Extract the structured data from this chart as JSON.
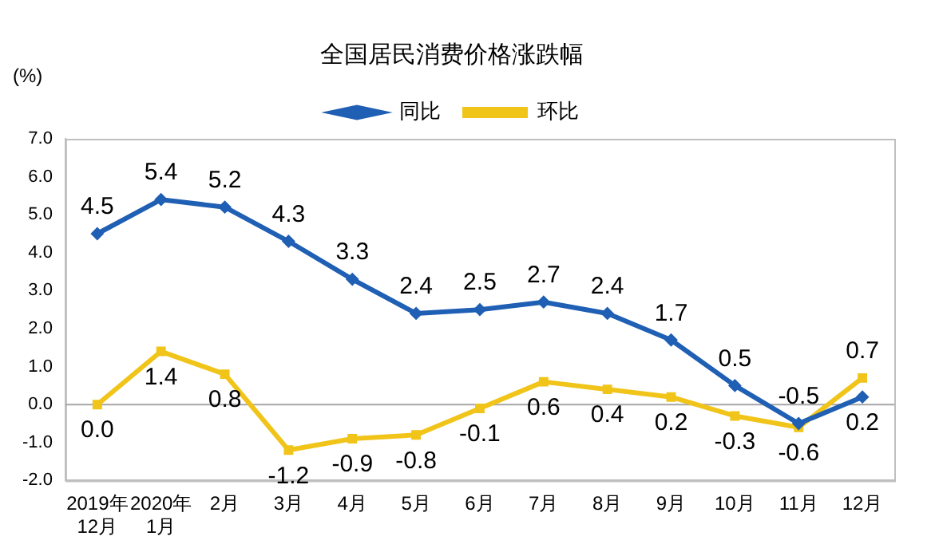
{
  "chart_data": {
    "type": "line",
    "title": "全国居民消费价格涨跌幅",
    "ylabel": "(%)",
    "categories": [
      "2019年\n12月",
      "2020年\n1月",
      "2月",
      "3月",
      "4月",
      "5月",
      "6月",
      "7月",
      "8月",
      "9月",
      "10月",
      "11月",
      "12月"
    ],
    "series": [
      {
        "name": "同比",
        "color": "#1f5fb4",
        "marker": "diamond",
        "values": [
          4.5,
          5.4,
          5.2,
          4.3,
          3.3,
          2.4,
          2.5,
          2.7,
          2.4,
          1.7,
          0.5,
          -0.5,
          0.2
        ],
        "value_labels": [
          "4.5",
          "5.4",
          "5.2",
          "4.3",
          "3.3",
          "2.4",
          "2.5",
          "2.7",
          "2.4",
          "1.7",
          "0.5",
          "-0.5",
          "0.2"
        ]
      },
      {
        "name": "环比",
        "color": "#f0c419",
        "marker": "square",
        "values": [
          0.0,
          1.4,
          0.8,
          -1.2,
          -0.9,
          -0.8,
          -0.1,
          0.6,
          0.4,
          0.2,
          -0.3,
          -0.6,
          0.7
        ],
        "value_labels": [
          "0.0",
          "1.4",
          "0.8",
          "-1.2",
          "-0.9",
          "-0.8",
          "-0.1",
          "0.6",
          "0.4",
          "0.2",
          "-0.3",
          "-0.6",
          "0.7"
        ]
      }
    ],
    "ylim": [
      -2,
      7
    ],
    "yticks": [
      {
        "value": -2,
        "label": "-2.0"
      },
      {
        "value": -1,
        "label": "-1.0"
      },
      {
        "value": 0,
        "label": "0.0"
      },
      {
        "value": 1,
        "label": "1.0"
      },
      {
        "value": 2,
        "label": "2.0"
      },
      {
        "value": 3,
        "label": "3.0"
      },
      {
        "value": 4,
        "label": "4.0"
      },
      {
        "value": 5,
        "label": "5.0"
      },
      {
        "value": 6,
        "label": "6.0"
      },
      {
        "value": 7,
        "label": "7.0"
      }
    ],
    "ref_lines": [
      {
        "axis": "y",
        "value": 0,
        "color": "#a6a6a6"
      }
    ],
    "grid": false,
    "legend": "top",
    "line_style": "solid"
  }
}
